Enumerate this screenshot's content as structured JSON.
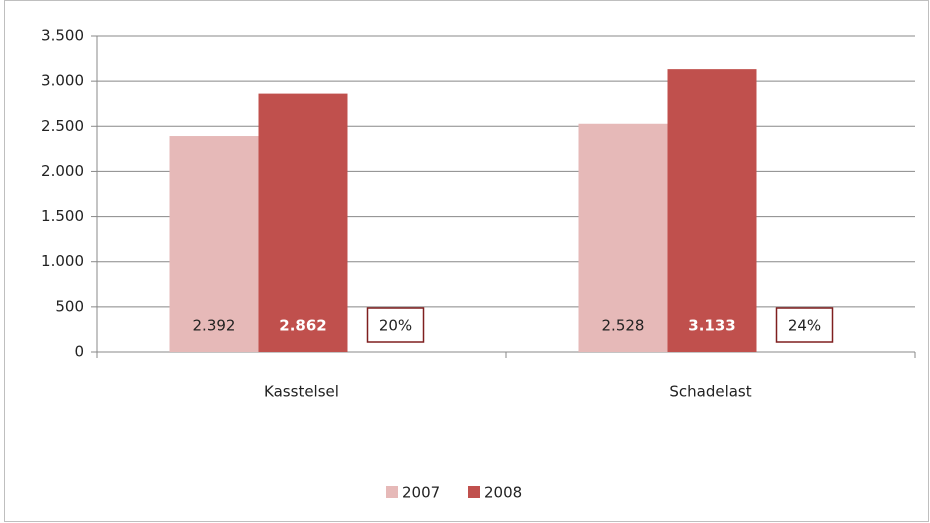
{
  "chart_data": {
    "type": "bar",
    "categories": [
      "Kasstelsel",
      "Schadelast"
    ],
    "series": [
      {
        "name": "2007",
        "color": "#e6b9b8",
        "values": [
          2392,
          2528
        ],
        "value_labels": [
          "2.392",
          "2.528"
        ]
      },
      {
        "name": "2008",
        "color": "#c0504d",
        "values": [
          2862,
          3133
        ],
        "value_labels": [
          "2.862",
          "3.133"
        ]
      }
    ],
    "annotations": [
      "20%",
      "24%"
    ],
    "ylim": [
      0,
      3500
    ],
    "yticks": [
      0,
      500,
      {
        "value": 1000,
        "label": "1.000"
      },
      {
        "value": 1500,
        "label": "1.500"
      },
      {
        "value": 2000,
        "label": "2.000"
      },
      {
        "value": 2500,
        "label": "2.500"
      },
      {
        "value": 3000,
        "label": "3.000"
      },
      {
        "value": 3500,
        "label": "3.500"
      }
    ],
    "grid": true,
    "legend": "bottom"
  }
}
